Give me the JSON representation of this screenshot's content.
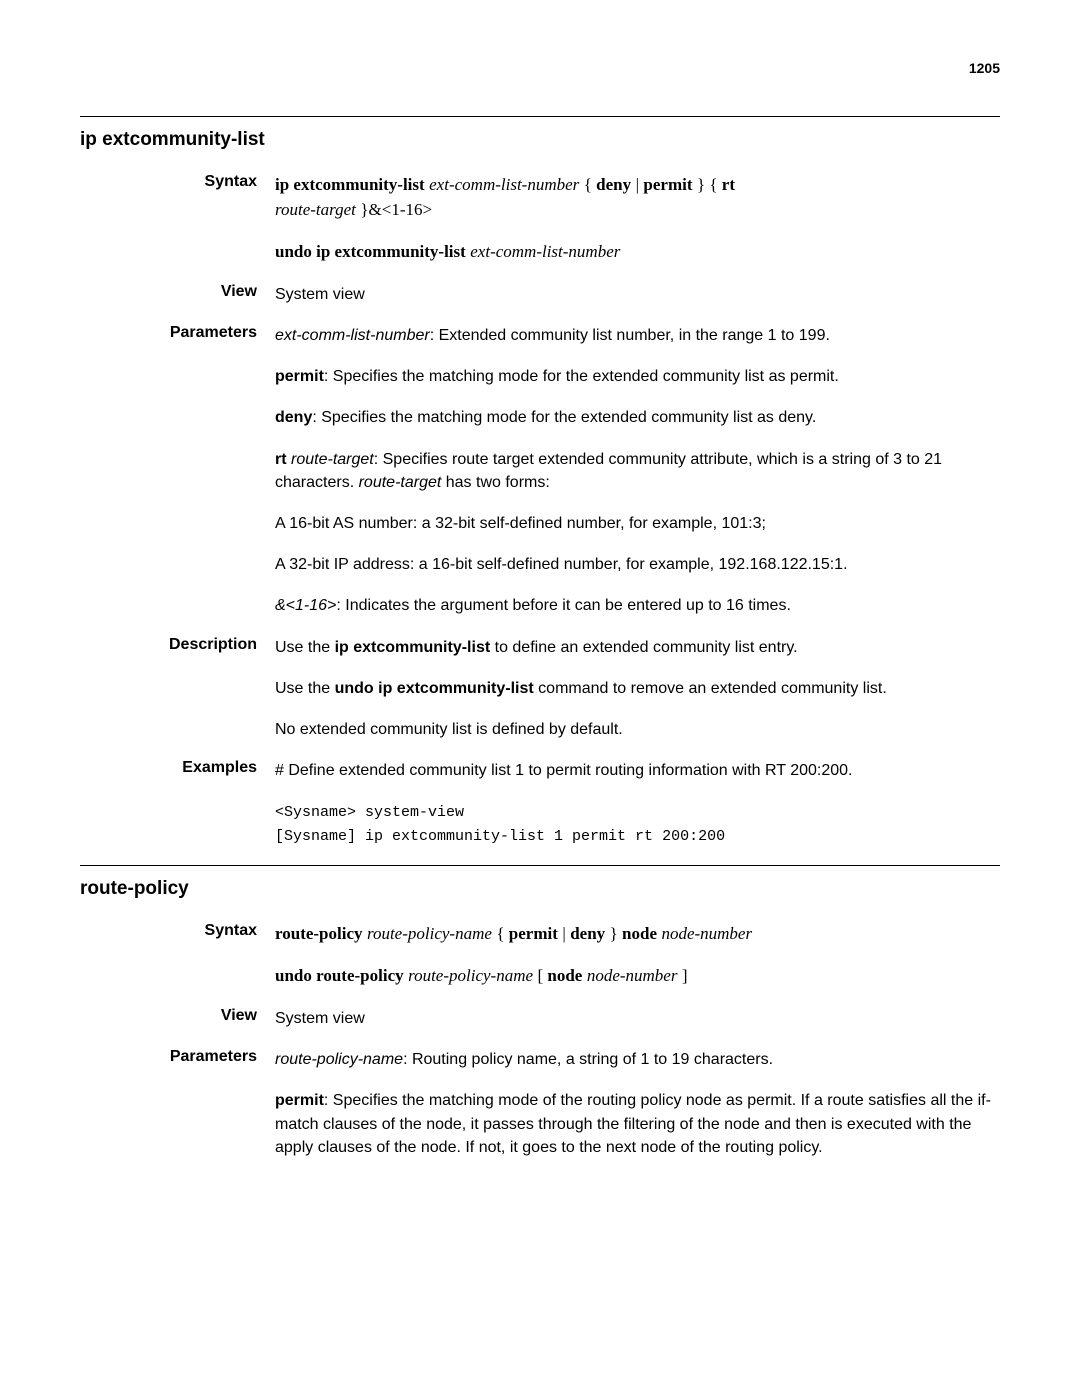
{
  "page_number": "1205",
  "sections": [
    {
      "title": "ip extcommunity-list",
      "blocks": [
        {
          "label": "Syntax",
          "paras": [
            {
              "html": "<span class='serif bold'>ip extcommunity-list</span> <span class='serif italic'>ext-comm-list-number</span> <span class='serif'>{ </span><span class='serif bold'>deny</span> <span class='serif'>|</span> <span class='serif bold'>permit</span> <span class='serif'>} { </span><span class='serif bold'>rt</span><br><span class='serif italic'>route-target</span> <span class='serif'>}&amp;&lt;1-16&gt;</span>"
            },
            {
              "html": "<span class='serif bold'>undo ip extcommunity-list</span> <span class='serif italic'>ext-comm-list-number</span>"
            }
          ]
        },
        {
          "label": "View",
          "paras": [
            {
              "html": "System view"
            }
          ]
        },
        {
          "label": "Parameters",
          "paras": [
            {
              "html": "<span class='italic'>ext-comm-list-number</span>: Extended community list number, in the range 1 to 199."
            },
            {
              "html": "<span class='bold'>permit</span>: Specifies the matching mode for the extended community list as permit."
            },
            {
              "html": "<span class='bold'>deny</span>: Specifies the matching mode for the extended community list as deny."
            },
            {
              "html": "<span class='bold'>rt</span> <span class='italic'>route-target</span>: Specifies route target extended community attribute, which is a string of 3 to 21 characters. <span class='italic'>route-target</span> has two forms:"
            },
            {
              "html": "A 16-bit AS number: a 32-bit self-defined number, for example, 101:3;"
            },
            {
              "html": "A 32-bit IP address: a 16-bit self-defined number, for example, 192.168.122.15:1."
            },
            {
              "html": "<span class='italic'>&amp;&lt;1-16&gt;</span>: Indicates the argument before it can be entered up to 16 times."
            }
          ]
        },
        {
          "label": "Description",
          "paras": [
            {
              "html": "Use the <span class='bold'>ip extcommunity-list</span> to define an extended community list entry."
            },
            {
              "html": "Use the <span class='bold'>undo ip extcommunity-list</span> command to remove an extended community list."
            },
            {
              "html": "No extended community list is defined by default."
            }
          ]
        },
        {
          "label": "Examples",
          "paras": [
            {
              "html": "# Define extended community list 1 to permit routing information with RT 200:200."
            },
            {
              "html": "<span class='mono'>&lt;Sysname&gt; system-view\n[Sysname] ip extcommunity-list 1 permit rt 200:200</span>"
            }
          ]
        }
      ]
    },
    {
      "title": "route-policy",
      "blocks": [
        {
          "label": "Syntax",
          "paras": [
            {
              "html": "<span class='serif bold'>route-policy</span> <span class='serif italic'>route-policy-name</span> <span class='serif'>{ </span><span class='serif bold'>permit</span> <span class='serif'>|</span> <span class='serif bold'>deny</span> <span class='serif'>} </span><span class='serif bold'>node</span> <span class='serif italic'>node-number</span>"
            },
            {
              "html": "<span class='serif bold'>undo route-policy</span> <span class='serif italic'>route-policy-name</span> <span class='serif'>[ </span><span class='serif bold'>node</span> <span class='serif italic'>node-number</span> <span class='serif'>]</span>"
            }
          ]
        },
        {
          "label": "View",
          "paras": [
            {
              "html": "System view"
            }
          ]
        },
        {
          "label": "Parameters",
          "paras": [
            {
              "html": "<span class='italic'>route-policy-name</span>: Routing policy name, a string of 1 to 19 characters."
            },
            {
              "html": "<span class='bold'>permit</span>: Specifies the matching mode of the routing policy node as permit. If a route satisfies all the if-match clauses of the node, it passes through the filtering of the node and then is executed with the apply clauses of the node. If not, it goes to the next node of the routing policy."
            }
          ]
        }
      ]
    }
  ]
}
